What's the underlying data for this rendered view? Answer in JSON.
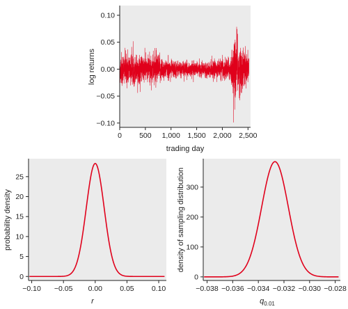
{
  "colors": {
    "series": "#e0001b",
    "panel": "#ebebeb",
    "axis": "#222222"
  },
  "chart_data": [
    {
      "type": "line",
      "xlabel": "trading day",
      "ylabel": "log returns",
      "xlim": [
        0,
        2550
      ],
      "ylim": [
        -0.108,
        0.118
      ],
      "xticks": [
        0,
        500,
        1000,
        1500,
        2000,
        2500
      ],
      "xtick_labels": [
        "0",
        "500",
        "1,000",
        "1,500",
        "2,000",
        "2,500"
      ],
      "yticks": [
        -0.1,
        -0.05,
        0.0,
        0.05,
        0.1
      ],
      "ytick_labels": [
        "−0.10",
        "−0.05",
        "0.00",
        "0.05",
        "0.10"
      ],
      "n_points": 2520,
      "volatility_profile": [
        {
          "x": 0,
          "sd": 0.016
        },
        {
          "x": 200,
          "sd": 0.014
        },
        {
          "x": 500,
          "sd": 0.012
        },
        {
          "x": 700,
          "sd": 0.015
        },
        {
          "x": 900,
          "sd": 0.009
        },
        {
          "x": 1200,
          "sd": 0.007
        },
        {
          "x": 1600,
          "sd": 0.006
        },
        {
          "x": 1900,
          "sd": 0.008
        },
        {
          "x": 2150,
          "sd": 0.011
        },
        {
          "x": 2250,
          "sd": 0.03
        },
        {
          "x": 2350,
          "sd": 0.022
        },
        {
          "x": 2520,
          "sd": 0.013
        }
      ]
    },
    {
      "type": "line",
      "xlabel": "r",
      "ylabel": "probability density",
      "xlim": [
        -0.105,
        0.112
      ],
      "ylim": [
        -1,
        29.5
      ],
      "xticks": [
        -0.1,
        -0.05,
        0.0,
        0.05,
        0.1
      ],
      "xtick_labels": [
        "−0.10",
        "−0.05",
        "0.00",
        "0.05",
        "0.10"
      ],
      "yticks": [
        0,
        5,
        10,
        15,
        20,
        25
      ],
      "ytick_labels": [
        "0",
        "5",
        "10",
        "15",
        "20",
        "25"
      ],
      "distribution": {
        "family": "normal",
        "mean": 0.0,
        "peak": 28.3,
        "sd": 0.0141
      }
    },
    {
      "type": "line",
      "xlabel": "q",
      "xlabel_sub": "0.01",
      "ylabel": "density of sampling distribution",
      "xlim": [
        -0.0383,
        -0.0276
      ],
      "ylim": [
        -12,
        395
      ],
      "xticks": [
        -0.038,
        -0.036,
        -0.034,
        -0.032,
        -0.03,
        -0.028
      ],
      "xtick_labels": [
        "−0.038",
        "−0.036",
        "−0.034",
        "−0.032",
        "−0.030",
        "−0.028"
      ],
      "yticks": [
        0,
        100,
        200,
        300
      ],
      "ytick_labels": [
        "0",
        "100",
        "200",
        "300"
      ],
      "distribution": {
        "family": "normal",
        "mean": -0.0327,
        "peak": 385,
        "sd": 0.00104
      }
    }
  ]
}
